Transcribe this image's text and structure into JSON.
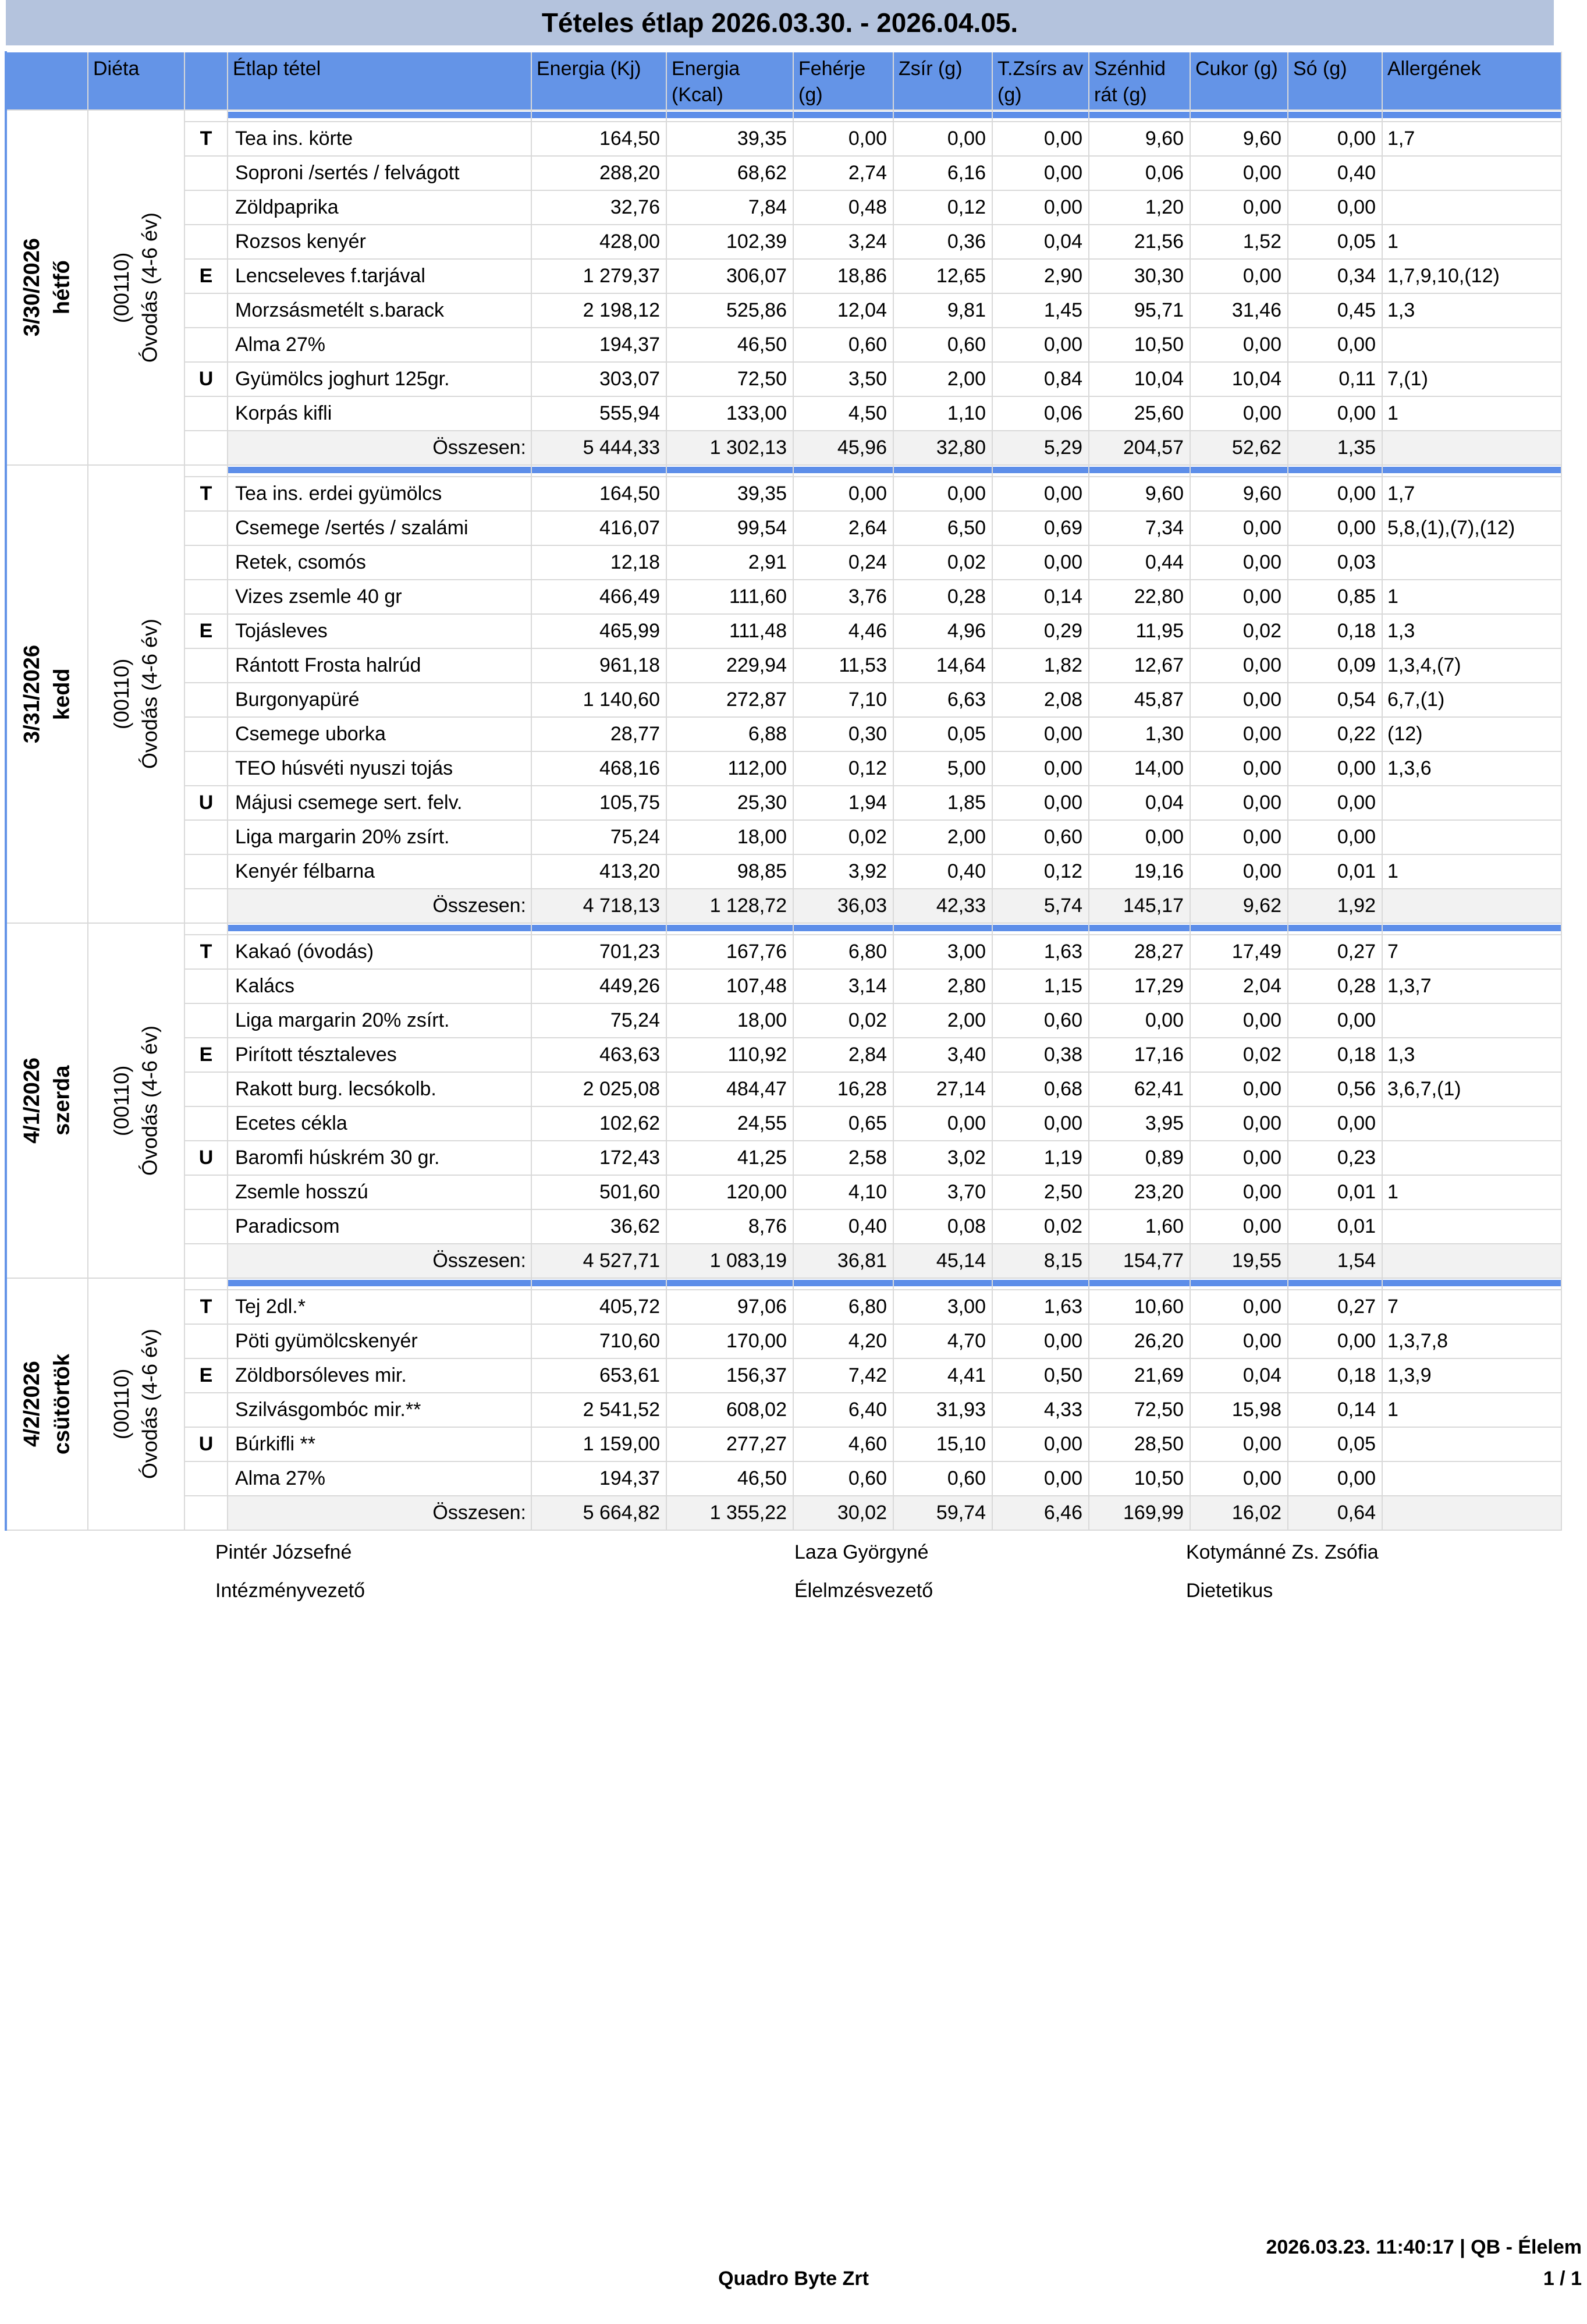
{
  "title": "Tételes étlap 2026.03.30. - 2026.04.05.",
  "colors": {
    "header_blue": "#6494e7",
    "separator_blue": "#5d8ee9",
    "title_band_blue": "#b4c3dd",
    "grid_gray": "#d9d9d9",
    "total_row_gray": "#f2f2f2"
  },
  "columns": [
    "",
    "Diéta",
    "",
    "Étlap tétel",
    "Energia (Kj)",
    "Energia (Kcal)",
    "Fehérje (g)",
    "Zsír (g)",
    "T.Zsírs av (g)",
    "Szénhid rát (g)",
    "Cukor (g)",
    "Só (g)",
    "Allergének"
  ],
  "days": [
    {
      "date": "3/30/2026",
      "weekday": "hétfő",
      "diet_code": "(00110)",
      "diet_name": "Óvodás (4-6 év)",
      "items": [
        [
          "T",
          "Tea ins. körte",
          "164,50",
          "39,35",
          "0,00",
          "0,00",
          "0,00",
          "9,60",
          "9,60",
          "0,00",
          "1,7"
        ],
        [
          "",
          "Soproni /sertés / felvágott",
          "288,20",
          "68,62",
          "2,74",
          "6,16",
          "0,00",
          "0,06",
          "0,00",
          "0,40",
          ""
        ],
        [
          "",
          "Zöldpaprika",
          "32,76",
          "7,84",
          "0,48",
          "0,12",
          "0,00",
          "1,20",
          "0,00",
          "0,00",
          ""
        ],
        [
          "",
          "Rozsos kenyér",
          "428,00",
          "102,39",
          "3,24",
          "0,36",
          "0,04",
          "21,56",
          "1,52",
          "0,05",
          "1"
        ],
        [
          "E",
          "Lencseleves f.tarjával",
          "1 279,37",
          "306,07",
          "18,86",
          "12,65",
          "2,90",
          "30,30",
          "0,00",
          "0,34",
          "1,7,9,10,(12)"
        ],
        [
          "",
          "Morzsásmetélt s.barack",
          "2 198,12",
          "525,86",
          "12,04",
          "9,81",
          "1,45",
          "95,71",
          "31,46",
          "0,45",
          "1,3"
        ],
        [
          "",
          "Alma 27%",
          "194,37",
          "46,50",
          "0,60",
          "0,60",
          "0,00",
          "10,50",
          "0,00",
          "0,00",
          ""
        ],
        [
          "U",
          "Gyümölcs joghurt 125gr.",
          "303,07",
          "72,50",
          "3,50",
          "2,00",
          "0,84",
          "10,04",
          "10,04",
          "0,11",
          "7,(1)"
        ],
        [
          "",
          "Korpás kifli",
          "555,94",
          "133,00",
          "4,50",
          "1,10",
          "0,06",
          "25,60",
          "0,00",
          "0,00",
          "1"
        ]
      ],
      "total": [
        "Összesen:",
        "5 444,33",
        "1 302,13",
        "45,96",
        "32,80",
        "5,29",
        "204,57",
        "52,62",
        "1,35",
        ""
      ]
    },
    {
      "date": "3/31/2026",
      "weekday": "kedd",
      "diet_code": "(00110)",
      "diet_name": "Óvodás (4-6 év)",
      "items": [
        [
          "T",
          "Tea ins. erdei gyümölcs",
          "164,50",
          "39,35",
          "0,00",
          "0,00",
          "0,00",
          "9,60",
          "9,60",
          "0,00",
          "1,7"
        ],
        [
          "",
          "Csemege /sertés / szalámi",
          "416,07",
          "99,54",
          "2,64",
          "6,50",
          "0,69",
          "7,34",
          "0,00",
          "0,00",
          "5,8,(1),(7),(12)"
        ],
        [
          "",
          "Retek, csomós",
          "12,18",
          "2,91",
          "0,24",
          "0,02",
          "0,00",
          "0,44",
          "0,00",
          "0,03",
          ""
        ],
        [
          "",
          "Vizes zsemle 40 gr",
          "466,49",
          "111,60",
          "3,76",
          "0,28",
          "0,14",
          "22,80",
          "0,00",
          "0,85",
          "1"
        ],
        [
          "E",
          "Tojásleves",
          "465,99",
          "111,48",
          "4,46",
          "4,96",
          "0,29",
          "11,95",
          "0,02",
          "0,18",
          "1,3"
        ],
        [
          "",
          "Rántott Frosta halrúd",
          "961,18",
          "229,94",
          "11,53",
          "14,64",
          "1,82",
          "12,67",
          "0,00",
          "0,09",
          "1,3,4,(7)"
        ],
        [
          "",
          "Burgonyapüré",
          "1 140,60",
          "272,87",
          "7,10",
          "6,63",
          "2,08",
          "45,87",
          "0,00",
          "0,54",
          "6,7,(1)"
        ],
        [
          "",
          "Csemege uborka",
          "28,77",
          "6,88",
          "0,30",
          "0,05",
          "0,00",
          "1,30",
          "0,00",
          "0,22",
          "(12)"
        ],
        [
          "",
          "TEO húsvéti nyuszi tojás",
          "468,16",
          "112,00",
          "0,12",
          "5,00",
          "0,00",
          "14,00",
          "0,00",
          "0,00",
          "1,3,6"
        ],
        [
          "U",
          "Májusi csemege sert. felv.",
          "105,75",
          "25,30",
          "1,94",
          "1,85",
          "0,00",
          "0,04",
          "0,00",
          "0,00",
          ""
        ],
        [
          "",
          "Liga margarin 20% zsírt.",
          "75,24",
          "18,00",
          "0,02",
          "2,00",
          "0,60",
          "0,00",
          "0,00",
          "0,00",
          ""
        ],
        [
          "",
          "Kenyér félbarna",
          "413,20",
          "98,85",
          "3,92",
          "0,40",
          "0,12",
          "19,16",
          "0,00",
          "0,01",
          "1"
        ]
      ],
      "total": [
        "Összesen:",
        "4 718,13",
        "1 128,72",
        "36,03",
        "42,33",
        "5,74",
        "145,17",
        "9,62",
        "1,92",
        ""
      ]
    },
    {
      "date": "4/1/2026",
      "weekday": "szerda",
      "diet_code": "(00110)",
      "diet_name": "Óvodás (4-6 év)",
      "items": [
        [
          "T",
          "Kakaó (óvodás)",
          "701,23",
          "167,76",
          "6,80",
          "3,00",
          "1,63",
          "28,27",
          "17,49",
          "0,27",
          "7"
        ],
        [
          "",
          "Kalács",
          "449,26",
          "107,48",
          "3,14",
          "2,80",
          "1,15",
          "17,29",
          "2,04",
          "0,28",
          "1,3,7"
        ],
        [
          "",
          "Liga margarin 20% zsírt.",
          "75,24",
          "18,00",
          "0,02",
          "2,00",
          "0,60",
          "0,00",
          "0,00",
          "0,00",
          ""
        ],
        [
          "E",
          "Pirított tésztaleves",
          "463,63",
          "110,92",
          "2,84",
          "3,40",
          "0,38",
          "17,16",
          "0,02",
          "0,18",
          "1,3"
        ],
        [
          "",
          "Rakott burg. lecsókolb.",
          "2 025,08",
          "484,47",
          "16,28",
          "27,14",
          "0,68",
          "62,41",
          "0,00",
          "0,56",
          "3,6,7,(1)"
        ],
        [
          "",
          "Ecetes cékla",
          "102,62",
          "24,55",
          "0,65",
          "0,00",
          "0,00",
          "3,95",
          "0,00",
          "0,00",
          ""
        ],
        [
          "U",
          "Baromfi húskrém 30 gr.",
          "172,43",
          "41,25",
          "2,58",
          "3,02",
          "1,19",
          "0,89",
          "0,00",
          "0,23",
          ""
        ],
        [
          "",
          "Zsemle hosszú",
          "501,60",
          "120,00",
          "4,10",
          "3,70",
          "2,50",
          "23,20",
          "0,00",
          "0,01",
          "1"
        ],
        [
          "",
          "Paradicsom",
          "36,62",
          "8,76",
          "0,40",
          "0,08",
          "0,02",
          "1,60",
          "0,00",
          "0,01",
          ""
        ]
      ],
      "total": [
        "Összesen:",
        "4 527,71",
        "1 083,19",
        "36,81",
        "45,14",
        "8,15",
        "154,77",
        "19,55",
        "1,54",
        ""
      ]
    },
    {
      "date": "4/2/2026",
      "weekday": "csütörtök",
      "diet_code": "(00110)",
      "diet_name": "Óvodás (4-6 év)",
      "items": [
        [
          "T",
          "Tej 2dl.*",
          "405,72",
          "97,06",
          "6,80",
          "3,00",
          "1,63",
          "10,60",
          "0,00",
          "0,27",
          "7"
        ],
        [
          "",
          "Pöti gyümölcskenyér",
          "710,60",
          "170,00",
          "4,20",
          "4,70",
          "0,00",
          "26,20",
          "0,00",
          "0,00",
          "1,3,7,8"
        ],
        [
          "E",
          "Zöldborsóleves mir.",
          "653,61",
          "156,37",
          "7,42",
          "4,41",
          "0,50",
          "21,69",
          "0,04",
          "0,18",
          "1,3,9"
        ],
        [
          "",
          "Szilvásgombóc mir.**",
          "2 541,52",
          "608,02",
          "6,40",
          "31,93",
          "4,33",
          "72,50",
          "15,98",
          "0,14",
          "1"
        ],
        [
          "U",
          "Búrkifli **",
          "1 159,00",
          "277,27",
          "4,60",
          "15,10",
          "0,00",
          "28,50",
          "0,00",
          "0,05",
          ""
        ],
        [
          "",
          "Alma 27%",
          "194,37",
          "46,50",
          "0,60",
          "0,60",
          "0,00",
          "10,50",
          "0,00",
          "0,00",
          ""
        ]
      ],
      "total": [
        "Összesen:",
        "5 664,82",
        "1 355,22",
        "30,02",
        "59,74",
        "6,46",
        "169,99",
        "16,02",
        "0,64",
        ""
      ]
    }
  ],
  "signatures": [
    {
      "name": "Pintér Józsefné",
      "role": "Intézményvezető"
    },
    {
      "name": "Laza Györgyné",
      "role": "Élelmzésvezető"
    },
    {
      "name": "Kotymánné Zs. Zsófia",
      "role": "Dietetikus"
    }
  ],
  "footer": {
    "generated": "2026.03.23. 11:40:17 | QB - Élelem",
    "company": "Quadro Byte Zrt",
    "page": "1 / 1"
  }
}
